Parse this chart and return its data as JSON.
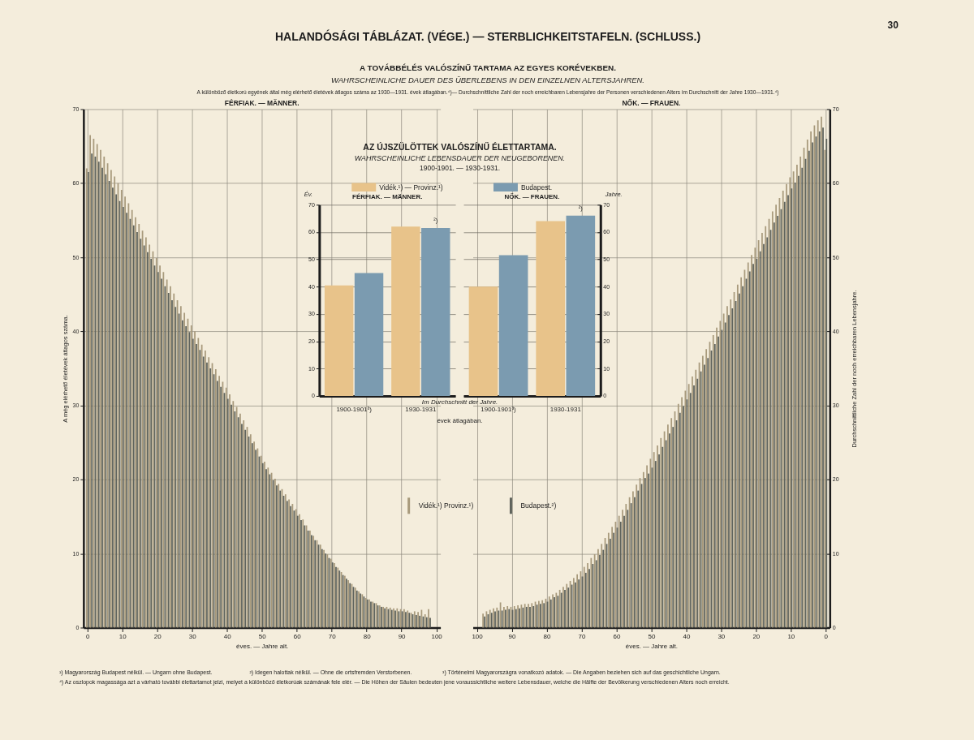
{
  "chart_data": [
    {
      "type": "other",
      "title": "HALANDÓSÁGI TÁBLÁZAT. (VÉGE.) — STERBLICHKEITSTAFELN. (SCHLUSS.)",
      "subtitle": "A TOVÁBBÉLÉS VALÓSZÍNŰ TARTAMA AZ EGYES KORÉVEKBEN.",
      "annotations": [
        "30",
        "WAHRSCHEINLICHE DAUER DES ÜBERLEBENS IN DEN EINZELNEN ALTERSJAHREN.",
        "A különböző életkorú egyének által még elérhető életévek átlagos száma az 1930—1931. évek átlagában.⁴)— Durchschnittliche Zahl der noch erreichbaren Lebensjahre der Personen verschiedenen Alters im Durchschnitt der Jahre 1930—1931.⁴)",
        "¹) Magyarország Budapest nélkül. — Ungarn ohne Budapest.",
        "²) Idegen halottak nélkül. — Ohne die ortsfremden Verstorbenen.",
        "³) Történelmi Magyarországra vonatkozó adatok. — Die Angaben beziehen sich auf das geschichtliche Ungarn.",
        "⁴) Az oszlopok magassága azt a várható további élettartamot jelzi, melyet a különböző életkorúak számának fele elér. — Die Höhen der Säulen bedeuten jene voraussichtliche weitere Lebensdauer, welche die Hälfte der Bevölkerung verschiedenen Alters noch erreicht."
      ]
    },
    {
      "type": "bar",
      "title": "FÉRFIAK. — MÄNNER.",
      "xlabel": "éves. — Jahre alt.",
      "ylabel": "A még elérhető életévek átlagos száma.",
      "x": [
        0,
        1,
        2,
        3,
        4,
        5,
        6,
        7,
        8,
        9,
        10,
        11,
        12,
        13,
        14,
        15,
        16,
        17,
        18,
        19,
        20,
        21,
        22,
        23,
        24,
        25,
        26,
        27,
        28,
        29,
        30,
        31,
        32,
        33,
        34,
        35,
        36,
        37,
        38,
        39,
        40,
        41,
        42,
        43,
        44,
        45,
        46,
        47,
        48,
        49,
        50,
        51,
        52,
        53,
        54,
        55,
        56,
        57,
        58,
        59,
        60,
        61,
        62,
        63,
        64,
        65,
        66,
        67,
        68,
        69,
        70,
        71,
        72,
        73,
        74,
        75,
        76,
        77,
        78,
        79,
        80,
        81,
        82,
        83,
        84,
        85,
        86,
        87,
        88,
        89,
        90,
        91,
        92,
        93,
        94,
        95,
        96,
        97,
        98
      ],
      "xlim": [
        0,
        100
      ],
      "xticks": [
        0,
        10,
        20,
        30,
        40,
        50,
        60,
        70,
        80,
        90,
        100
      ],
      "ylim": [
        0,
        70
      ],
      "yticks": [
        0,
        10,
        20,
        30,
        40,
        50,
        60,
        70
      ],
      "grid": true,
      "legend": "right",
      "series": [
        {
          "name": "Vidék.¹) Provinz.¹)",
          "color": "#a89a7c",
          "values": [
            62.0,
            66.5,
            66.0,
            65.3,
            64.5,
            63.6,
            62.7,
            61.8,
            60.9,
            60.0,
            59.1,
            58.2,
            57.3,
            56.4,
            55.4,
            54.5,
            53.6,
            52.7,
            51.7,
            50.8,
            49.9,
            48.9,
            48.0,
            47.0,
            46.1,
            45.1,
            44.2,
            43.4,
            42.5,
            41.7,
            40.8,
            40.0,
            39.1,
            38.2,
            37.4,
            36.5,
            35.7,
            34.9,
            34.0,
            33.2,
            32.4,
            31.5,
            30.6,
            29.8,
            28.9,
            28.0,
            27.1,
            26.1,
            25.1,
            24.2,
            23.2,
            22.4,
            21.6,
            20.9,
            20.1,
            19.4,
            18.7,
            18.0,
            17.3,
            16.7,
            16.0,
            15.3,
            14.6,
            13.8,
            13.1,
            12.4,
            11.8,
            11.2,
            10.5,
            9.9,
            9.3,
            8.7,
            8.1,
            7.5,
            7.0,
            6.4,
            5.9,
            5.4,
            4.9,
            4.5,
            4.0,
            3.8,
            3.5,
            3.3,
            3.0,
            2.8,
            2.8,
            2.7,
            2.6,
            2.6,
            2.5,
            2.5,
            2.3,
            2.0,
            2.2,
            2.1,
            2.4,
            1.8,
            2.5
          ]
        },
        {
          "name": "Budapest.²)",
          "color": "#5f635c",
          "values": [
            61.5,
            64.0,
            63.6,
            62.9,
            62.1,
            61.2,
            60.3,
            59.4,
            58.5,
            57.6,
            56.8,
            56.0,
            55.2,
            54.3,
            53.4,
            52.5,
            51.6,
            50.7,
            49.8,
            48.9,
            48.0,
            47.1,
            46.1,
            45.2,
            44.2,
            43.3,
            42.4,
            41.5,
            40.7,
            39.9,
            39.0,
            38.3,
            37.5,
            36.6,
            35.8,
            35.0,
            34.2,
            33.3,
            32.5,
            31.7,
            30.9,
            30.1,
            29.2,
            28.4,
            27.5,
            26.7,
            25.8,
            24.9,
            24.0,
            23.1,
            22.2,
            21.4,
            20.7,
            19.9,
            19.2,
            18.5,
            17.8,
            17.1,
            16.4,
            15.8,
            15.1,
            14.5,
            13.8,
            13.1,
            12.5,
            11.8,
            11.2,
            10.6,
            10.0,
            9.4,
            8.8,
            8.2,
            7.7,
            7.1,
            6.6,
            6.0,
            5.5,
            5.0,
            4.6,
            4.2,
            3.8,
            3.5,
            3.3,
            3.0,
            2.8,
            2.6,
            2.5,
            2.4,
            2.3,
            2.2,
            2.2,
            2.1,
            2.0,
            1.8,
            1.7,
            1.6,
            1.5,
            1.4,
            1.3
          ]
        }
      ]
    },
    {
      "type": "bar",
      "title": "NŐK. — FRAUEN.",
      "xlabel": "éves. — Jahre alt.",
      "ylabel": "Durchschnittliche Zahl der noch erreichbaren Lebensjahre.",
      "x": [
        0,
        1,
        2,
        3,
        4,
        5,
        6,
        7,
        8,
        9,
        10,
        11,
        12,
        13,
        14,
        15,
        16,
        17,
        18,
        19,
        20,
        21,
        22,
        23,
        24,
        25,
        26,
        27,
        28,
        29,
        30,
        31,
        32,
        33,
        34,
        35,
        36,
        37,
        38,
        39,
        40,
        41,
        42,
        43,
        44,
        45,
        46,
        47,
        48,
        49,
        50,
        51,
        52,
        53,
        54,
        55,
        56,
        57,
        58,
        59,
        60,
        61,
        62,
        63,
        64,
        65,
        66,
        67,
        68,
        69,
        70,
        71,
        72,
        73,
        74,
        75,
        76,
        77,
        78,
        79,
        80,
        81,
        82,
        83,
        84,
        85,
        86,
        87,
        88,
        89,
        90,
        91,
        92,
        93,
        94,
        95,
        96,
        97,
        98
      ],
      "xlim": [
        100,
        0
      ],
      "xticks": [
        100,
        90,
        80,
        70,
        60,
        50,
        40,
        30,
        20,
        10,
        0
      ],
      "ylim": [
        0,
        70
      ],
      "yticks": [
        0,
        10,
        20,
        30,
        40,
        50,
        60,
        70
      ],
      "grid": true,
      "series": [
        {
          "name": "Vidék.¹) Provinz.¹)",
          "color": "#a89a7c",
          "values": [
            64.5,
            69.0,
            68.5,
            67.8,
            67.0,
            65.9,
            64.8,
            63.6,
            62.5,
            61.6,
            60.8,
            59.9,
            59.0,
            58.0,
            57.1,
            56.2,
            55.2,
            54.2,
            53.3,
            52.3,
            51.3,
            50.3,
            49.3,
            48.3,
            47.3,
            46.3,
            45.3,
            44.3,
            43.4,
            42.4,
            41.4,
            40.5,
            39.5,
            38.6,
            37.6,
            36.7,
            35.8,
            34.8,
            33.9,
            32.9,
            32.0,
            31.1,
            30.2,
            29.2,
            28.3,
            27.4,
            26.5,
            25.6,
            24.6,
            23.7,
            22.8,
            21.9,
            21.0,
            20.2,
            19.3,
            18.4,
            17.6,
            16.7,
            15.9,
            15.1,
            14.3,
            13.6,
            12.8,
            12.1,
            11.3,
            10.6,
            9.9,
            9.4,
            8.7,
            8.2,
            7.6,
            7.2,
            6.7,
            6.3,
            5.9,
            5.5,
            5.1,
            4.7,
            4.5,
            4.2,
            3.9,
            3.7,
            3.6,
            3.5,
            3.3,
            3.2,
            3.2,
            3.1,
            3.0,
            2.9,
            2.8,
            2.9,
            2.8,
            3.4,
            2.7,
            2.6,
            2.4,
            2.2,
            1.9
          ]
        },
        {
          "name": "Budapest.²)",
          "color": "#5f635c",
          "values": [
            66.0,
            67.5,
            67.0,
            66.3,
            65.5,
            64.4,
            63.3,
            62.1,
            61.0,
            60.1,
            59.3,
            58.4,
            57.5,
            56.5,
            55.6,
            54.7,
            53.7,
            52.7,
            51.8,
            50.8,
            49.8,
            49.1,
            48.1,
            47.1,
            46.1,
            45.1,
            44.1,
            43.1,
            42.2,
            41.2,
            40.2,
            39.3,
            38.3,
            37.4,
            36.4,
            35.5,
            34.6,
            33.6,
            32.7,
            31.7,
            30.8,
            29.9,
            29.0,
            28.0,
            27.1,
            26.2,
            25.3,
            24.4,
            23.4,
            22.5,
            21.6,
            20.8,
            20.2,
            19.4,
            18.5,
            17.6,
            16.8,
            15.9,
            15.1,
            14.3,
            13.5,
            12.8,
            12.0,
            11.3,
            10.5,
            9.8,
            9.1,
            8.6,
            7.9,
            7.4,
            6.9,
            6.5,
            6.1,
            5.8,
            5.4,
            5.1,
            4.7,
            4.3,
            4.1,
            3.8,
            3.5,
            3.3,
            3.2,
            3.1,
            2.9,
            2.8,
            2.8,
            2.7,
            2.6,
            2.5,
            2.4,
            2.5,
            2.4,
            2.3,
            2.3,
            2.2,
            2.0,
            1.8,
            1.5
          ]
        }
      ]
    },
    {
      "type": "other",
      "title": "AZ ÚJSZÜLÖTTEK VALÓSZÍNŰ ÉLETTARTAMA.",
      "subtitle": "WAHRSCHEINLICHE LEBENSDAUER DER NEUGEBORENEN.",
      "annotations": [
        "1900-1901. — 1930-1931.",
        "FÉRFIAK. — MÄNNER.",
        "NŐK. — FRAUEN.",
        "Im Durchschnitt der Jahre.",
        "évek átlagában."
      ]
    },
    {
      "type": "bar",
      "ylabel": "Év.",
      "categories": [
        "1900-1901³)",
        "1930-1931"
      ],
      "ylim": [
        0,
        70
      ],
      "yticks": [
        0,
        10,
        20,
        30,
        40,
        50,
        60,
        70
      ],
      "grid": "y",
      "legend": "top",
      "series": [
        {
          "name": "Vidék.¹) — Provinz.¹)",
          "color": "#e8c38a",
          "values": [
            40.5,
            62.0
          ]
        },
        {
          "name": "Budapest.",
          "color": "#7b9bb0",
          "values": [
            45.0,
            61.5
          ]
        }
      ],
      "annotations": [
        {
          "text": "²)",
          "x": "1930-1931",
          "y": 61.5
        }
      ]
    },
    {
      "type": "bar",
      "ylabel": "Jahre.",
      "categories": [
        "1900-1901³)",
        "1930-1931"
      ],
      "ylim": [
        0,
        70
      ],
      "yticks": [
        0,
        10,
        20,
        30,
        40,
        50,
        60,
        70
      ],
      "grid": "y",
      "series": [
        {
          "name": "Vidék.¹) — Provinz.¹)",
          "color": "#e8c38a",
          "values": [
            40.0,
            64.0
          ]
        },
        {
          "name": "Budapest.",
          "color": "#7b9bb0",
          "values": [
            51.5,
            66.0
          ]
        }
      ],
      "annotations": [
        {
          "text": "²)",
          "x": "1930-1931",
          "y": 66.0
        }
      ]
    }
  ]
}
